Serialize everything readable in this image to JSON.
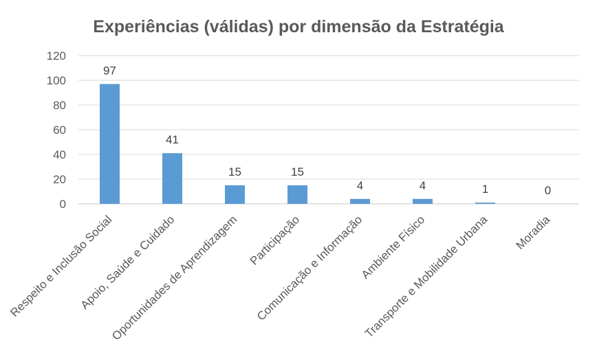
{
  "chart_data": {
    "type": "bar",
    "title": "Experiências (válidas) por dimensão da Estratégia",
    "categories": [
      "Respeito e Inclusão Social",
      "Apoio, Saúde e Cuidado",
      "Oportunidades de Aprendizagem",
      "Participação",
      "Comunicação e Informação",
      "Ambiente Físico",
      "Transporte e Mobilidade Urbana",
      "Moradia"
    ],
    "values": [
      97,
      41,
      15,
      15,
      4,
      4,
      1,
      0
    ],
    "xlabel": "",
    "ylabel": "",
    "ylim": [
      0,
      120
    ],
    "yticks": [
      0,
      20,
      40,
      60,
      80,
      100,
      120
    ],
    "grid": true,
    "legend": "none",
    "data_labels": true,
    "bar_color": "#5B9BD5",
    "grid_color": "#D9D9D9"
  }
}
